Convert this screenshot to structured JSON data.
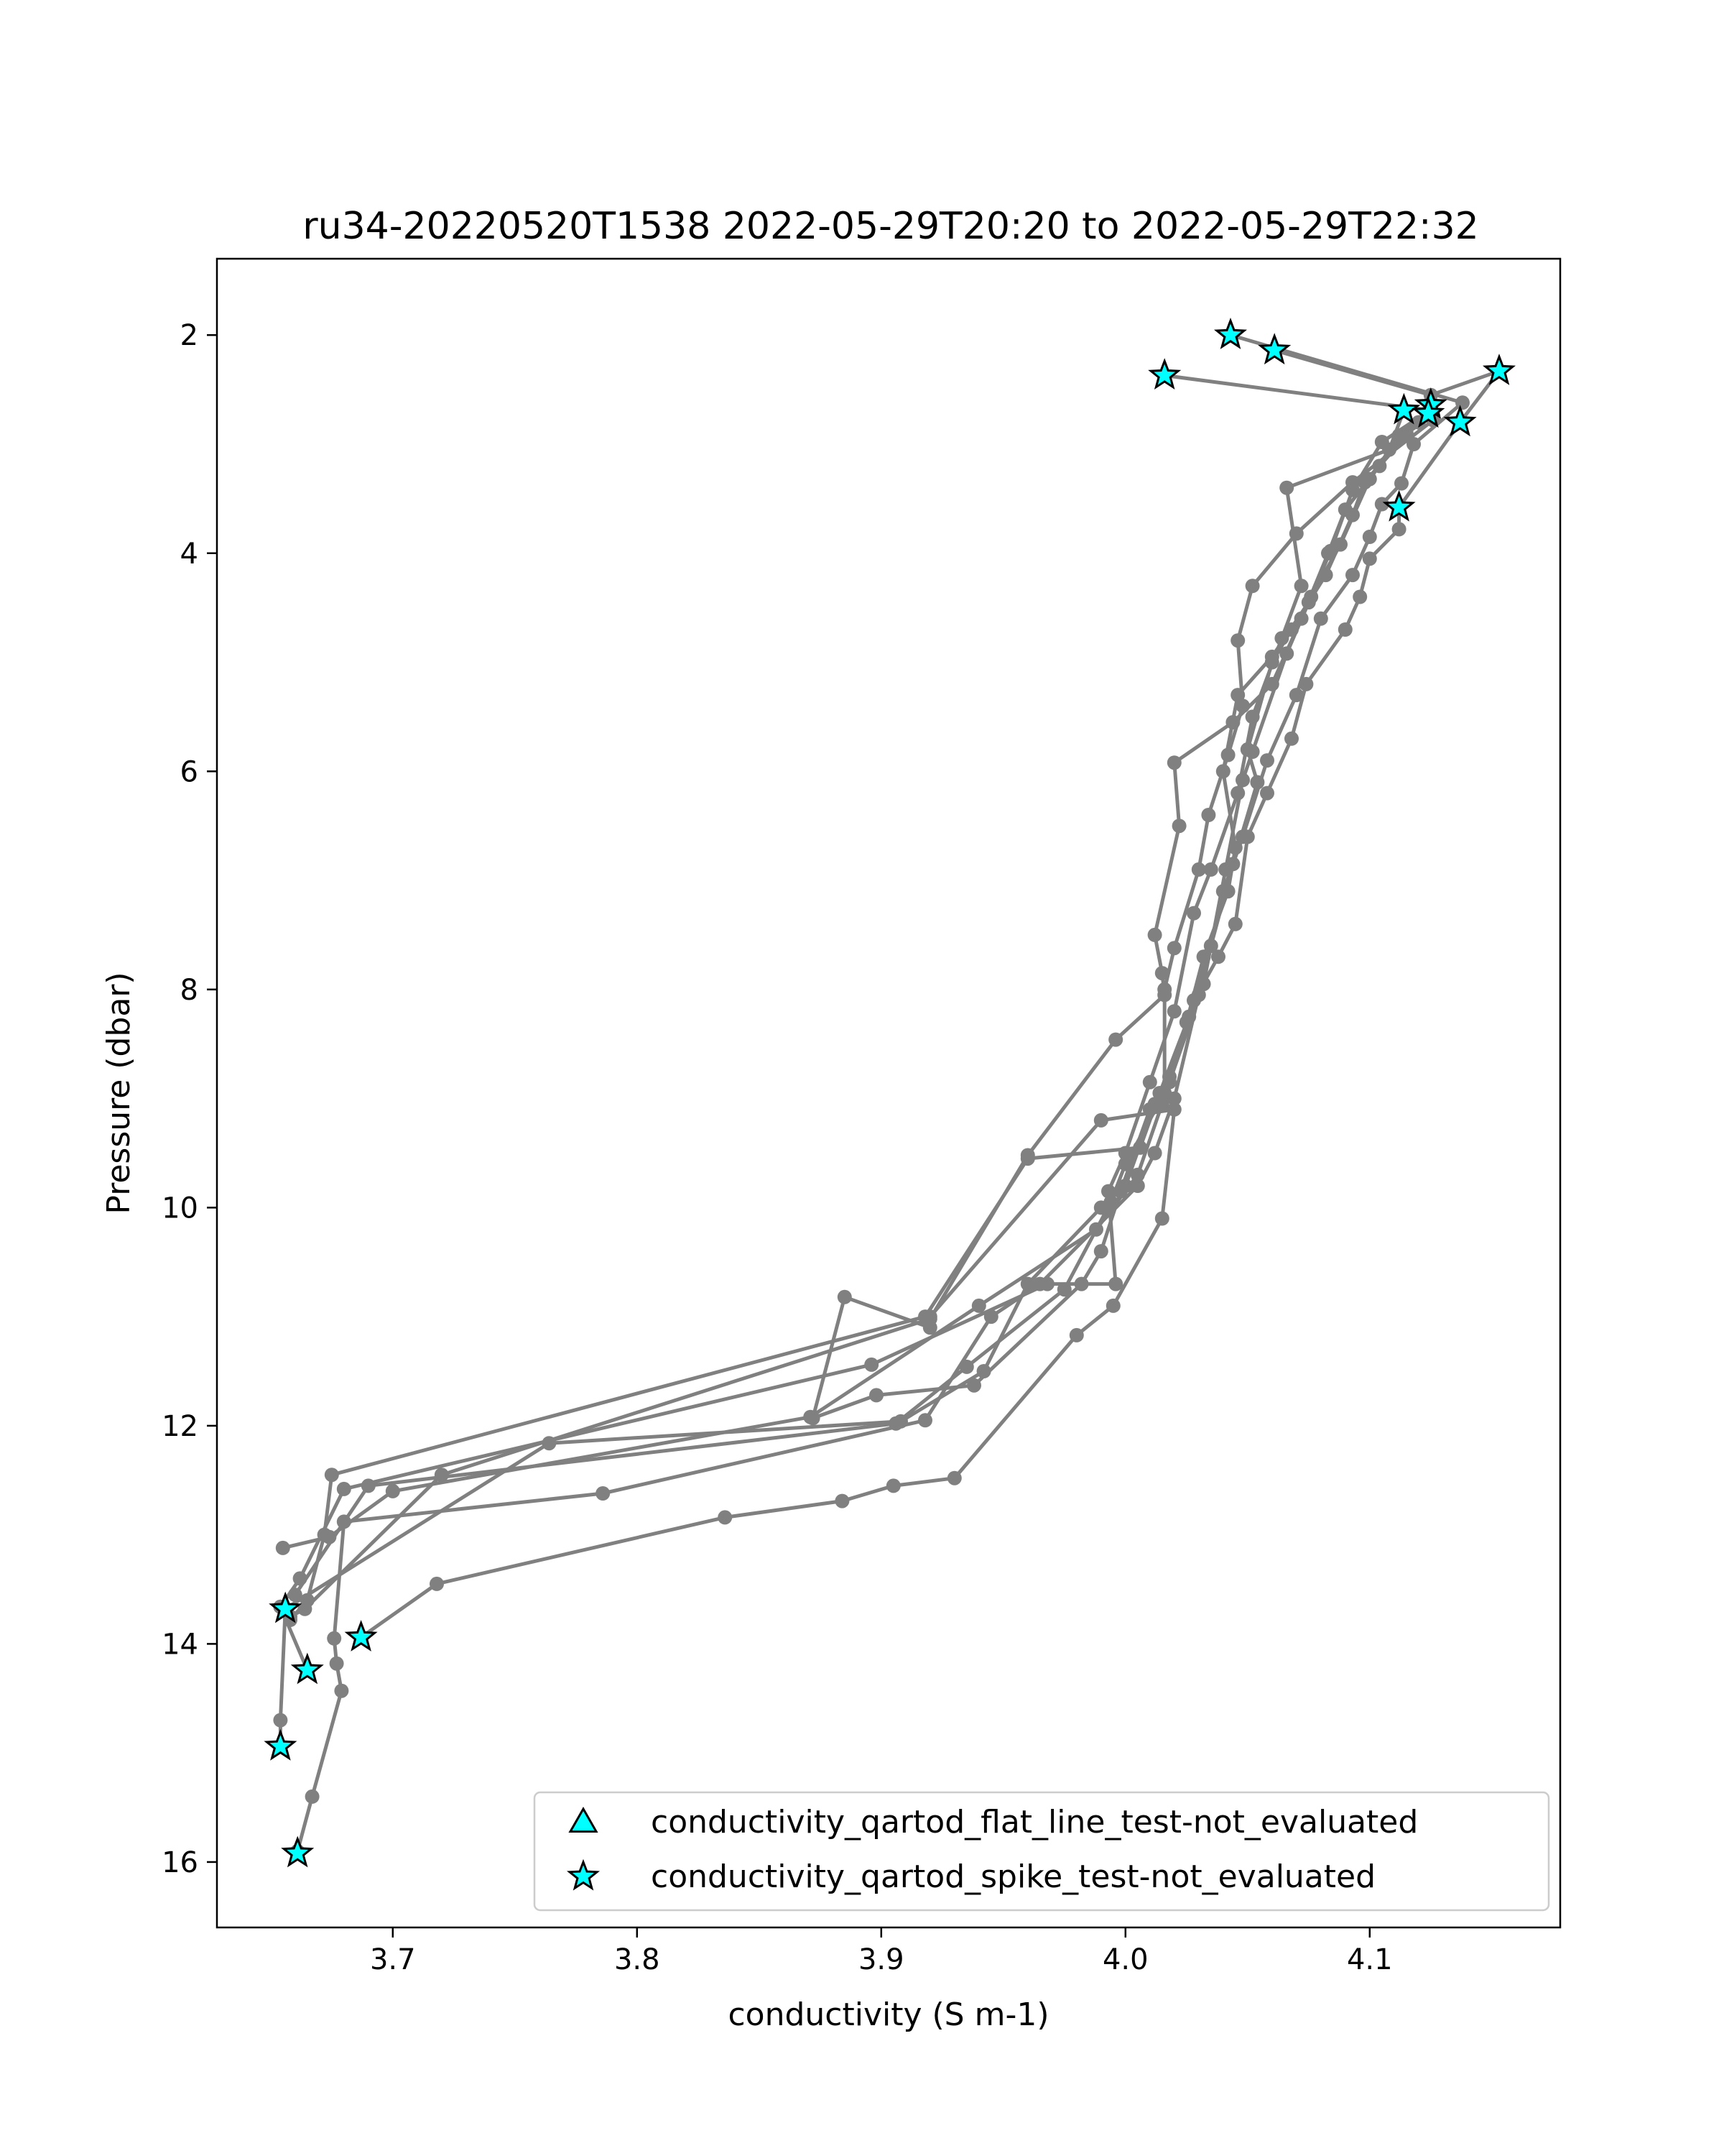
{
  "chart_data": {
    "type": "scatter",
    "title": "ru34-20220520T1538 2022-05-29T20:20 to 2022-05-29T22:32",
    "xlabel": "conductivity (S m-1)",
    "ylabel": "Pressure (dbar)",
    "xlim": [
      3.628,
      4.178
    ],
    "ylim": [
      16.6,
      1.3
    ],
    "y_inverted": true,
    "xticks": [
      {
        "value": 3.7,
        "label": "3.7"
      },
      {
        "value": 3.8,
        "label": "3.8"
      },
      {
        "value": 3.9,
        "label": "3.9"
      },
      {
        "value": 4.0,
        "label": "4.0"
      },
      {
        "value": 4.1,
        "label": "4.1"
      }
    ],
    "yticks": [
      {
        "value": 2,
        "label": "2"
      },
      {
        "value": 4,
        "label": "4"
      },
      {
        "value": 6,
        "label": "6"
      },
      {
        "value": 8,
        "label": "8"
      },
      {
        "value": 10,
        "label": "10"
      },
      {
        "value": 12,
        "label": "12"
      },
      {
        "value": 14,
        "label": "14"
      },
      {
        "value": 16,
        "label": "16"
      }
    ],
    "grid": false,
    "legend_position": "lower-right",
    "profile_color": "#808080",
    "marker_fill": "#00ffff",
    "marker_edge": "#000000",
    "profiles": [
      [
        [
          4.016,
          2.37
        ],
        [
          4.125,
          2.69
        ],
        [
          4.112,
          2.92
        ],
        [
          4.1,
          3.32
        ],
        [
          4.088,
          3.92
        ],
        [
          4.076,
          4.4
        ],
        [
          4.066,
          4.92
        ],
        [
          4.052,
          5.82
        ],
        [
          4.048,
          6.08
        ],
        [
          4.041,
          6.9
        ],
        [
          4.032,
          7.95
        ],
        [
          4.018,
          8.85
        ],
        [
          4.01,
          9.1
        ],
        [
          3.998,
          9.85
        ],
        [
          3.99,
          10.4
        ],
        [
          3.982,
          10.7
        ],
        [
          3.938,
          11.63
        ],
        [
          3.898,
          11.72
        ],
        [
          3.872,
          11.93
        ],
        [
          3.885,
          10.82
        ],
        [
          3.92,
          11.1
        ],
        [
          3.92,
          11.0
        ],
        [
          3.99,
          9.2
        ],
        [
          4.02,
          9.1
        ],
        [
          4.015,
          10.1
        ],
        [
          3.995,
          10.9
        ],
        [
          3.98,
          11.17
        ],
        [
          3.93,
          12.48
        ],
        [
          3.905,
          12.55
        ],
        [
          3.884,
          12.69
        ],
        [
          3.836,
          12.84
        ],
        [
          3.718,
          13.45
        ],
        [
          3.687,
          13.94
        ]
      ],
      [
        [
          4.043,
          2.0
        ],
        [
          4.138,
          2.62
        ],
        [
          4.118,
          3.0
        ],
        [
          4.113,
          3.36
        ],
        [
          4.105,
          3.55
        ],
        [
          4.1,
          3.85
        ],
        [
          4.093,
          4.2
        ],
        [
          4.08,
          4.6
        ],
        [
          4.07,
          5.3
        ],
        [
          4.058,
          5.9
        ],
        [
          4.048,
          6.6
        ],
        [
          4.04,
          7.1
        ],
        [
          4.03,
          8.05
        ],
        [
          4.02,
          9.0
        ],
        [
          4.012,
          9.5
        ],
        [
          4.005,
          9.8
        ],
        [
          3.965,
          10.7
        ],
        [
          3.945,
          11.0
        ],
        [
          3.918,
          11.95
        ],
        [
          3.786,
          12.62
        ],
        [
          3.68,
          12.88
        ],
        [
          3.676,
          13.95
        ],
        [
          3.677,
          14.18
        ],
        [
          3.679,
          14.43
        ],
        [
          3.667,
          15.4
        ],
        [
          3.661,
          15.9
        ]
      ],
      [
        [
          4.061,
          2.14
        ],
        [
          4.125,
          2.55
        ],
        [
          4.153,
          2.33
        ],
        [
          4.137,
          2.8
        ],
        [
          4.112,
          3.58
        ],
        [
          4.112,
          3.78
        ],
        [
          4.1,
          4.05
        ],
        [
          4.096,
          4.4
        ],
        [
          4.09,
          4.7
        ],
        [
          4.074,
          5.2
        ],
        [
          4.068,
          5.7
        ],
        [
          4.058,
          6.2
        ],
        [
          4.05,
          6.6
        ],
        [
          4.045,
          7.4
        ],
        [
          4.038,
          7.7
        ],
        [
          4.028,
          8.1
        ],
        [
          4.018,
          8.8
        ],
        [
          4.012,
          9.05
        ],
        [
          4.0,
          9.8
        ],
        [
          3.99,
          10.0
        ],
        [
          3.96,
          10.7
        ],
        [
          3.942,
          11.5
        ],
        [
          3.908,
          11.96
        ],
        [
          3.764,
          12.16
        ],
        [
          3.656,
          13.68
        ],
        [
          3.654,
          14.7
        ],
        [
          3.654,
          14.94
        ]
      ],
      [
        [
          4.114,
          2.69
        ],
        [
          4.108,
          3.05
        ],
        [
          4.066,
          3.4
        ],
        [
          4.072,
          4.3
        ],
        [
          4.064,
          4.78
        ],
        [
          4.052,
          5.5
        ],
        [
          4.046,
          6.2
        ],
        [
          4.035,
          6.9
        ],
        [
          4.028,
          7.3
        ],
        [
          4.02,
          8.2
        ],
        [
          4.01,
          8.85
        ],
        [
          4.0,
          9.5
        ],
        [
          3.993,
          9.85
        ],
        [
          3.996,
          10.7
        ],
        [
          3.968,
          10.7
        ],
        [
          3.896,
          11.44
        ],
        [
          3.68,
          12.58
        ],
        [
          3.662,
          13.4
        ],
        [
          3.654,
          13.66
        ],
        [
          3.665,
          14.24
        ]
      ],
      [
        [
          4.126,
          2.74
        ],
        [
          4.115,
          2.9
        ],
        [
          4.098,
          3.35
        ],
        [
          4.093,
          3.65
        ],
        [
          4.082,
          4.2
        ],
        [
          4.068,
          4.7
        ],
        [
          4.06,
          5.0
        ],
        [
          4.05,
          5.8
        ],
        [
          4.054,
          6.1
        ],
        [
          4.044,
          6.85
        ],
        [
          4.035,
          7.6
        ],
        [
          4.026,
          8.25
        ],
        [
          4.014,
          8.95
        ],
        [
          4.006,
          9.45
        ],
        [
          3.96,
          9.55
        ],
        [
          3.918,
          11.0
        ],
        [
          3.675,
          12.45
        ],
        [
          3.672,
          13.0
        ],
        [
          3.665,
          13.6
        ],
        [
          3.658,
          13.78
        ]
      ],
      [
        [
          4.124,
          2.7
        ],
        [
          4.105,
          2.98
        ],
        [
          4.093,
          3.42
        ],
        [
          4.084,
          3.98
        ],
        [
          4.075,
          4.45
        ],
        [
          4.06,
          4.95
        ],
        [
          4.046,
          5.3
        ],
        [
          4.04,
          6.0
        ],
        [
          4.045,
          6.7
        ],
        [
          4.042,
          7.1
        ],
        [
          4.032,
          7.7
        ],
        [
          4.025,
          8.3
        ],
        [
          4.015,
          9.05
        ],
        [
          4.005,
          9.7
        ],
        [
          3.988,
          10.2
        ],
        [
          3.94,
          10.9
        ],
        [
          3.871,
          11.92
        ],
        [
          3.7,
          12.6
        ],
        [
          3.674,
          13.02
        ],
        [
          3.655,
          13.12
        ]
      ],
      [
        [
          4.126,
          2.78
        ],
        [
          4.093,
          3.35
        ],
        [
          4.07,
          3.82
        ],
        [
          4.052,
          4.3
        ],
        [
          4.046,
          4.8
        ],
        [
          4.048,
          5.4
        ],
        [
          4.042,
          5.85
        ],
        [
          4.034,
          6.4
        ],
        [
          4.03,
          6.9
        ],
        [
          4.02,
          7.62
        ],
        [
          4.016,
          8.0
        ],
        [
          4.016,
          8.95
        ],
        [
          4.0,
          9.6
        ],
        [
          3.994,
          9.95
        ],
        [
          3.975,
          10.75
        ],
        [
          3.935,
          11.46
        ],
        [
          3.906,
          11.98
        ],
        [
          3.69,
          12.55
        ],
        [
          3.66,
          13.55
        ]
      ],
      [
        [
          4.12,
          2.8
        ],
        [
          4.104,
          3.2
        ],
        [
          4.09,
          3.6
        ],
        [
          4.083,
          4.0
        ],
        [
          4.072,
          4.6
        ],
        [
          4.06,
          5.2
        ],
        [
          4.044,
          5.55
        ],
        [
          4.02,
          5.92
        ],
        [
          4.022,
          6.5
        ],
        [
          4.012,
          7.5
        ],
        [
          4.015,
          7.85
        ],
        [
          4.016,
          8.05
        ],
        [
          3.996,
          8.46
        ],
        [
          3.96,
          9.52
        ],
        [
          3.92,
          11.02
        ],
        [
          3.72,
          12.45
        ],
        [
          3.664,
          13.68
        ],
        [
          3.658,
          13.75
        ]
      ]
    ],
    "stars": [
      [
        4.043,
        2.0
      ],
      [
        4.061,
        2.14
      ],
      [
        4.153,
        2.33
      ],
      [
        4.016,
        2.37
      ],
      [
        4.125,
        2.64
      ],
      [
        4.114,
        2.69
      ],
      [
        4.124,
        2.72
      ],
      [
        4.137,
        2.8
      ],
      [
        4.112,
        3.58
      ],
      [
        3.656,
        13.68
      ],
      [
        3.687,
        13.94
      ],
      [
        3.665,
        14.24
      ],
      [
        3.654,
        14.94
      ],
      [
        3.661,
        15.92
      ]
    ],
    "legend": [
      {
        "marker": "triangle",
        "label": "conductivity_qartod_flat_line_test-not_evaluated"
      },
      {
        "marker": "star",
        "label": "conductivity_qartod_spike_test-not_evaluated"
      }
    ]
  }
}
